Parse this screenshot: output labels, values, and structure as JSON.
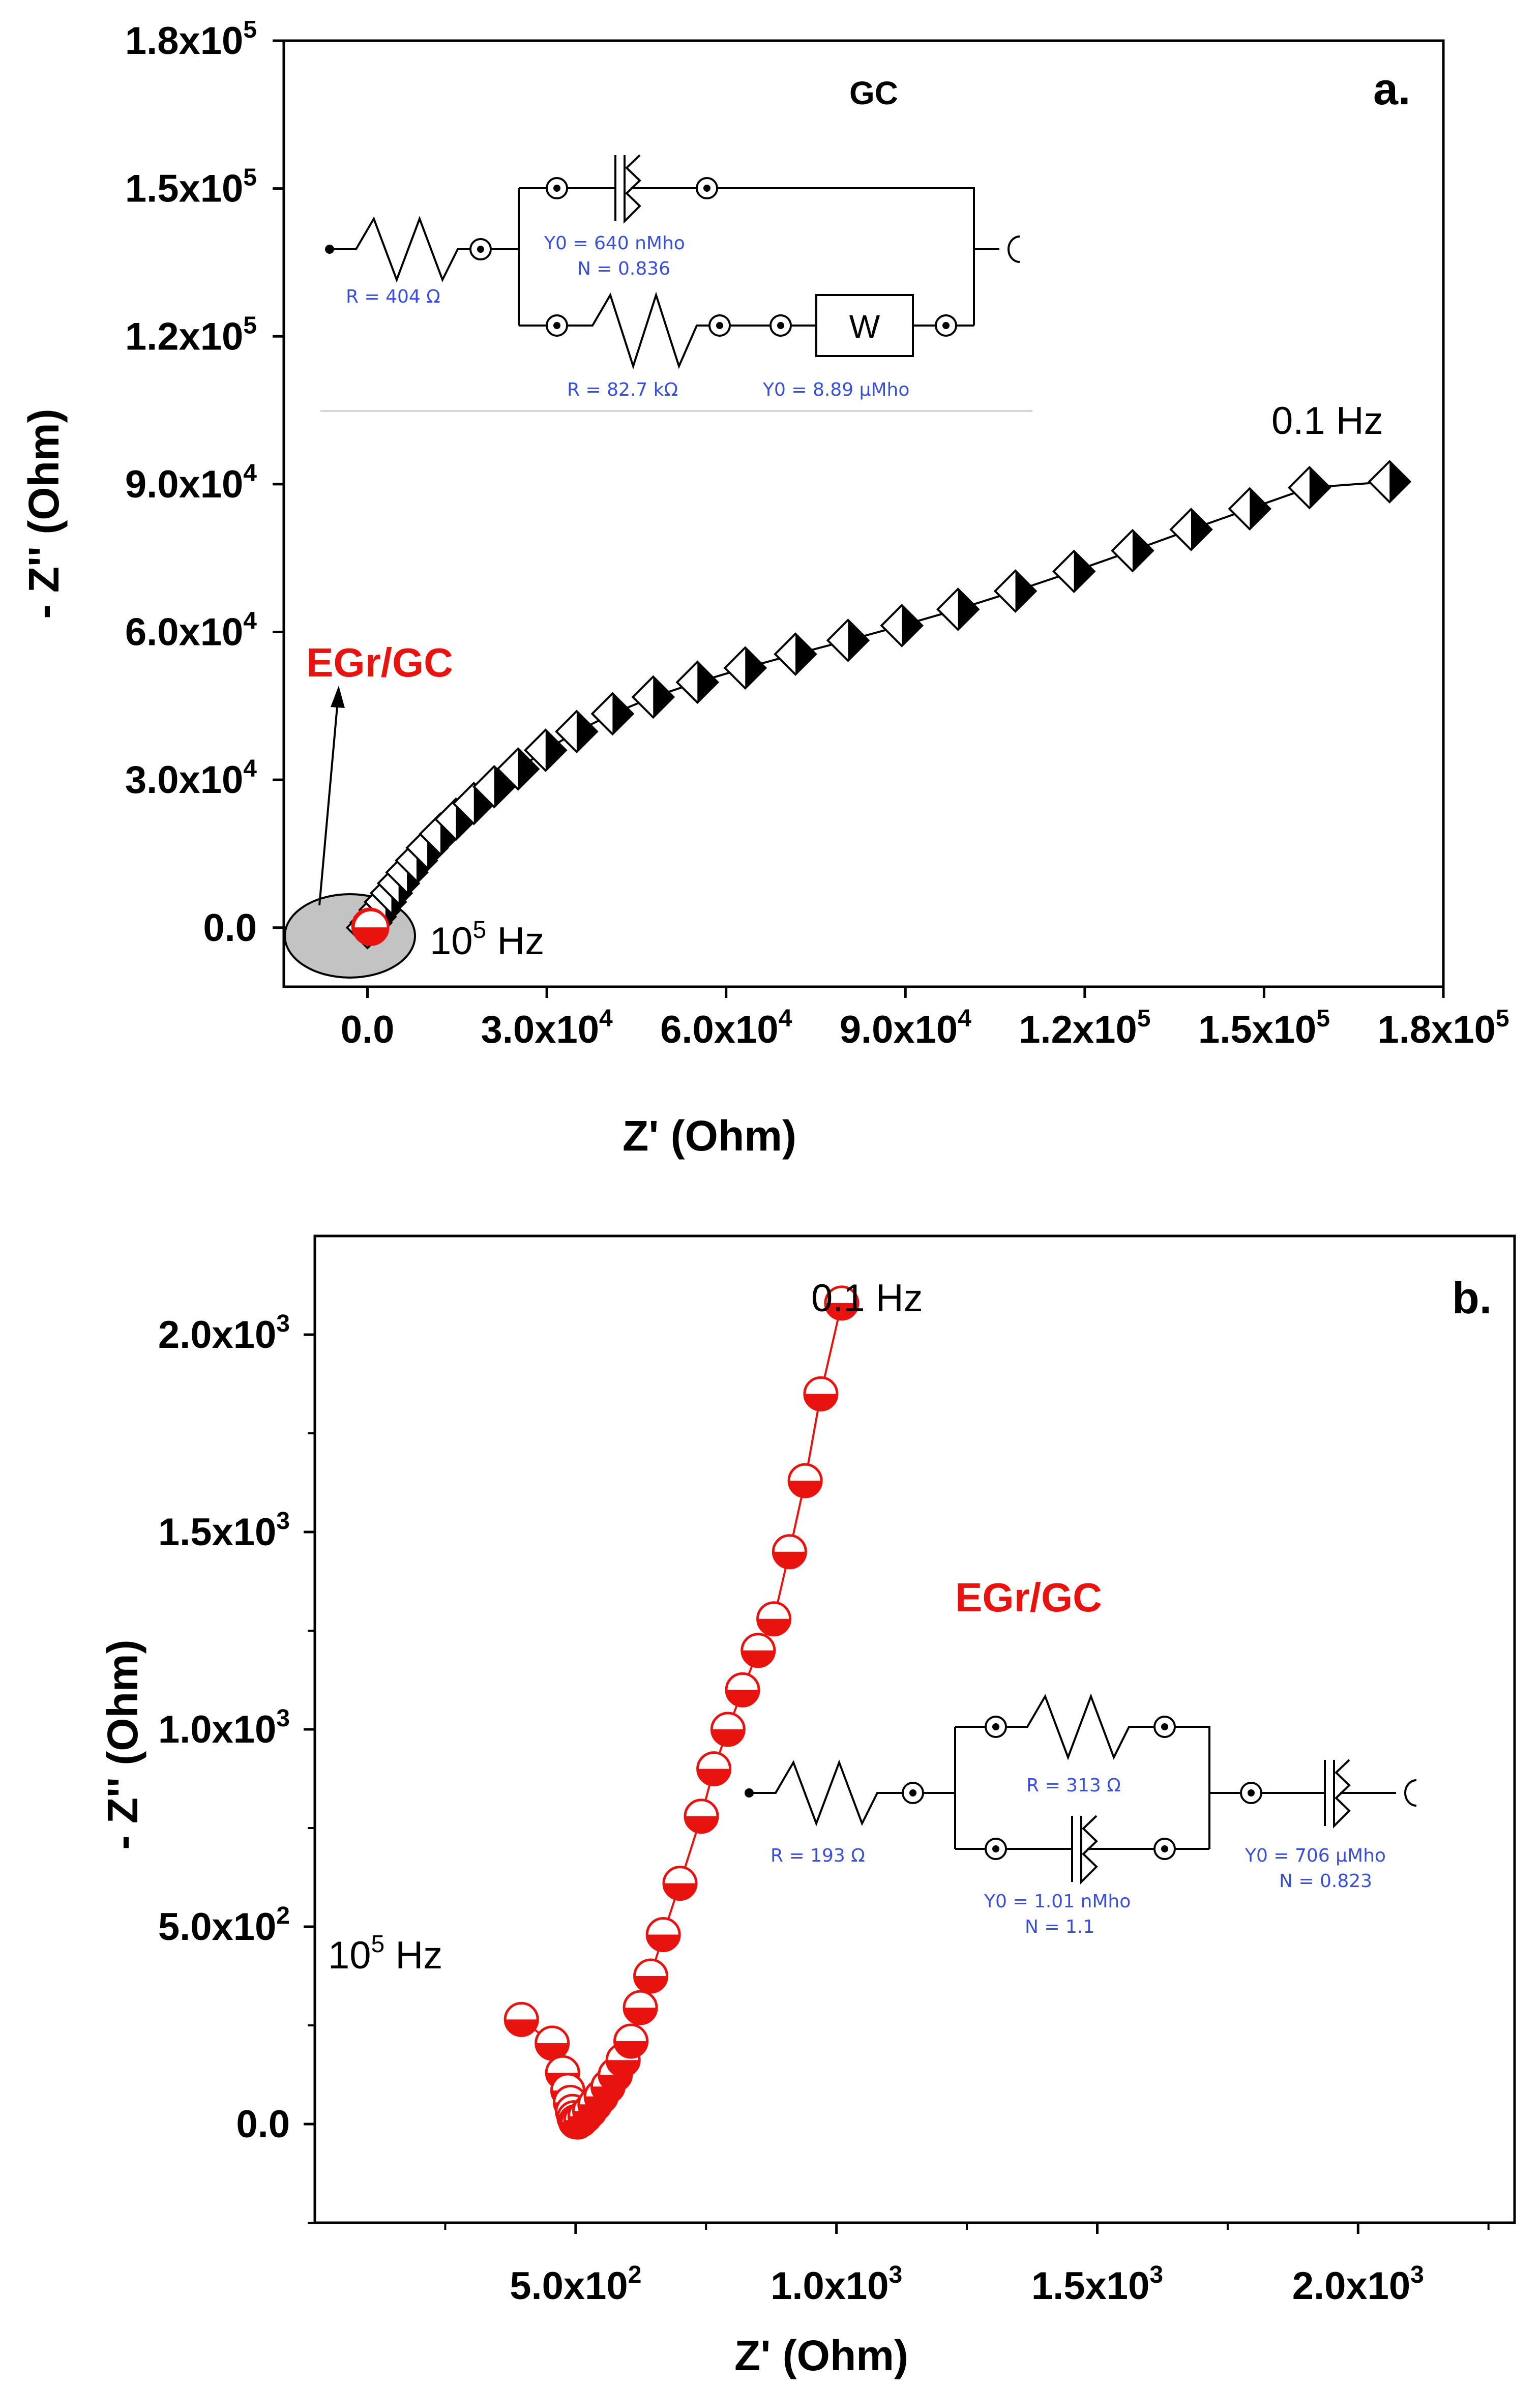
{
  "chart_data": [
    {
      "type": "scatter",
      "panel_label": "a.",
      "xlabel": "Z' (Ohm)",
      "ylabel": "- Z'' (Ohm)",
      "xlim": [
        -14000,
        180000
      ],
      "ylim": [
        -12000,
        180000
      ],
      "xticks": [
        {
          "value": 0,
          "mant": "0.0",
          "exp": ""
        },
        {
          "value": 30000,
          "mant": "3.0x10",
          "exp": "4"
        },
        {
          "value": 60000,
          "mant": "6.0x10",
          "exp": "4"
        },
        {
          "value": 90000,
          "mant": "9.0x10",
          "exp": "4"
        },
        {
          "value": 120000,
          "mant": "1.2x10",
          "exp": "5"
        },
        {
          "value": 150000,
          "mant": "1.5x10",
          "exp": "5"
        },
        {
          "value": 180000,
          "mant": "1.8x10",
          "exp": "5"
        }
      ],
      "yticks": [
        {
          "value": 0,
          "mant": "0.0",
          "exp": ""
        },
        {
          "value": 30000,
          "mant": "3.0x10",
          "exp": "4"
        },
        {
          "value": 60000,
          "mant": "6.0x10",
          "exp": "4"
        },
        {
          "value": 90000,
          "mant": "9.0x10",
          "exp": "4"
        },
        {
          "value": 120000,
          "mant": "1.2x10",
          "exp": "5"
        },
        {
          "value": 150000,
          "mant": "1.5x10",
          "exp": "5"
        },
        {
          "value": 180000,
          "mant": "1.8x10",
          "exp": "5"
        }
      ],
      "series": [
        {
          "name": "GC",
          "marker": "half-filled diamond",
          "color": "#000000",
          "x": [
            0,
            600,
            1300,
            2100,
            3000,
            4000,
            5200,
            6600,
            8200,
            10000,
            12200,
            14800,
            17800,
            21200,
            25200,
            29800,
            35000,
            41000,
            47800,
            55200,
            63200,
            71600,
            80400,
            89400,
            98800,
            108400,
            118200,
            128000,
            137800,
            147600,
            157600,
            171000
          ],
          "y": [
            0,
            1000,
            2200,
            3600,
            5200,
            7000,
            9000,
            11200,
            13600,
            16200,
            19000,
            22000,
            25200,
            28600,
            32200,
            36000,
            39800,
            43400,
            46800,
            49800,
            52700,
            55500,
            58300,
            61300,
            64600,
            68300,
            72300,
            76500,
            80800,
            85000,
            89300,
            90500
          ]
        },
        {
          "name": "EGr/GC",
          "marker": "half-filled circle",
          "color": "#e8130f",
          "x": [
            400,
            500,
            550
          ],
          "y": [
            300,
            150,
            50
          ]
        }
      ],
      "annotations": {
        "title": "GC",
        "start_freq_base": "10",
        "start_freq_exp": "5",
        "start_freq_unit": " Hz",
        "end_freq": "0.1 Hz",
        "inset_label": "EGr/GC"
      },
      "circuit": {
        "r1": "R = 404 Ω",
        "cpe_y0": "Y0 = 640 nMho",
        "cpe_n": "N = 0.836",
        "r2": "R = 82.7 kΩ",
        "w_symbol": "W",
        "w_y0": "Y0 = 8.89 μMho"
      }
    },
    {
      "type": "line",
      "panel_label": "b.",
      "xlabel": "Z' (Ohm)",
      "ylabel": "- Z'' (Ohm)",
      "xlim": [
        0,
        2300
      ],
      "ylim": [
        -250,
        2250
      ],
      "xticks": [
        {
          "value": 500,
          "mant": "5.0x10",
          "exp": "2"
        },
        {
          "value": 1000,
          "mant": "1.0x10",
          "exp": "3"
        },
        {
          "value": 1500,
          "mant": "1.5x10",
          "exp": "3"
        },
        {
          "value": 2000,
          "mant": "2.0x10",
          "exp": "3"
        }
      ],
      "xminor": [
        250,
        750,
        1250,
        1750,
        2250
      ],
      "yticks": [
        {
          "value": 0,
          "mant": "0.0",
          "exp": ""
        },
        {
          "value": 500,
          "mant": "5.0x10",
          "exp": "2"
        },
        {
          "value": 1000,
          "mant": "1.0x10",
          "exp": "3"
        },
        {
          "value": 1500,
          "mant": "1.5x10",
          "exp": "3"
        },
        {
          "value": 2000,
          "mant": "2.0x10",
          "exp": "3"
        }
      ],
      "yminor": [
        -250,
        250,
        750,
        1250,
        1750
      ],
      "series": [
        {
          "name": "EGr/GC",
          "marker": "half-filled circle",
          "color": "#e8130f",
          "x": [
            396,
            455,
            475,
            485,
            490,
            494,
            497,
            500,
            504,
            510,
            518,
            527,
            537,
            549,
            562,
            576,
            591,
            606,
            624,
            644,
            668,
            700,
            741,
            765,
            792,
            820,
            850,
            880,
            910,
            940,
            970,
            1010
          ],
          "y": [
            265,
            205,
            130,
            85,
            55,
            32,
            16,
            6,
            5,
            10,
            20,
            33,
            50,
            70,
            95,
            125,
            162,
            210,
            295,
            375,
            480,
            610,
            780,
            900,
            1000,
            1100,
            1200,
            1280,
            1450,
            1630,
            1850,
            2080
          ]
        }
      ],
      "annotations": {
        "start_freq_base": "10",
        "start_freq_exp": "5",
        "start_freq_unit": " Hz",
        "end_freq": "0.1 Hz",
        "title": "EGr/GC"
      },
      "circuit": {
        "r1": "R = 193 Ω",
        "r2": "R = 313 Ω",
        "cpe1_y0": "Y0 = 1.01 nMho",
        "cpe1_n": "N = 1.1",
        "cpe2_y0": "Y0 = 706 μMho",
        "cpe2_n": "N = 0.823"
      }
    }
  ]
}
